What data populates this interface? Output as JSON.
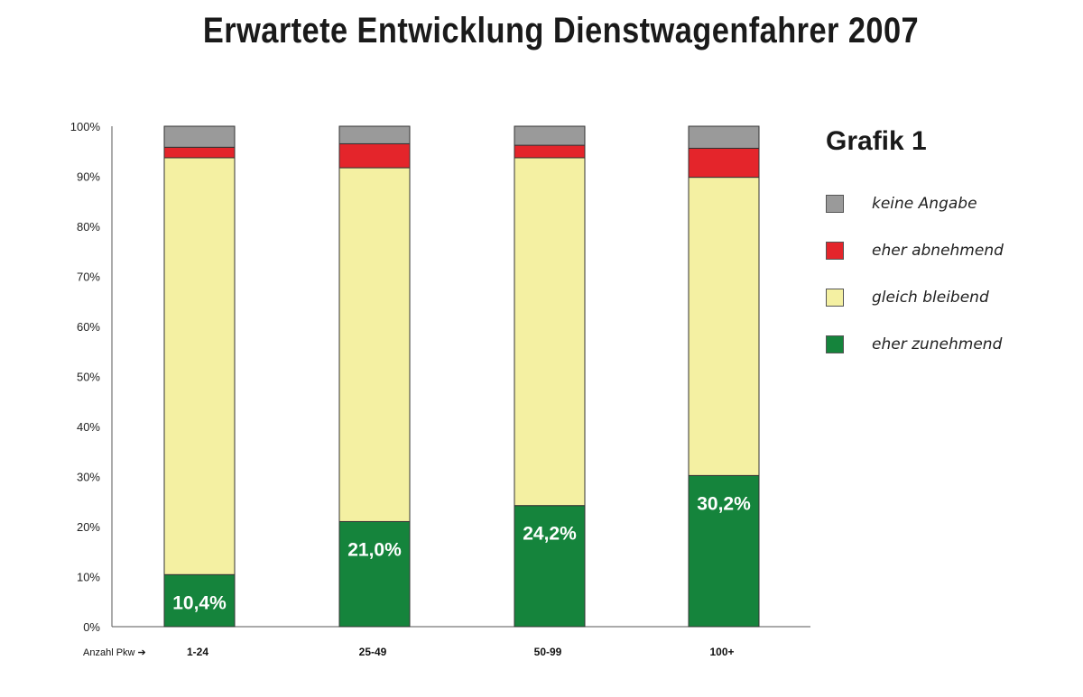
{
  "title": "Erwartete Entwicklung Dienstwagenfahrer 2007",
  "legend_heading": "Grafik 1",
  "x_caption": "Anzahl Pkw ➔",
  "chart_data": {
    "type": "bar",
    "stacked": true,
    "categories": [
      "1-24",
      "25-49",
      "50-99",
      "100+"
    ],
    "ylim": [
      0,
      100
    ],
    "y_ticks": [
      "0%",
      "10%",
      "20%",
      "30%",
      "40%",
      "50%",
      "60%",
      "70%",
      "80%",
      "90%",
      "100%"
    ],
    "series": [
      {
        "name": "eher zunehmend",
        "color": "#15843c",
        "values": [
          10.4,
          21.0,
          24.2,
          30.2
        ],
        "labels": [
          "10,4%",
          "21,0%",
          "24,2%",
          "30,2%"
        ]
      },
      {
        "name": "gleich bleibend",
        "color": "#f4f0a2",
        "values": [
          83.3,
          70.7,
          69.5,
          59.6
        ]
      },
      {
        "name": "eher abnehmend",
        "color": "#e4252b",
        "values": [
          2.1,
          4.8,
          2.5,
          5.8
        ]
      },
      {
        "name": "keine Angabe",
        "color": "#9a9a9a",
        "values": [
          4.2,
          3.5,
          3.8,
          4.4
        ]
      }
    ],
    "legend_order": [
      "keine Angabe",
      "eher abnehmend",
      "gleich bleibend",
      "eher zunehmend"
    ],
    "legend_position": "right",
    "grid": false
  }
}
